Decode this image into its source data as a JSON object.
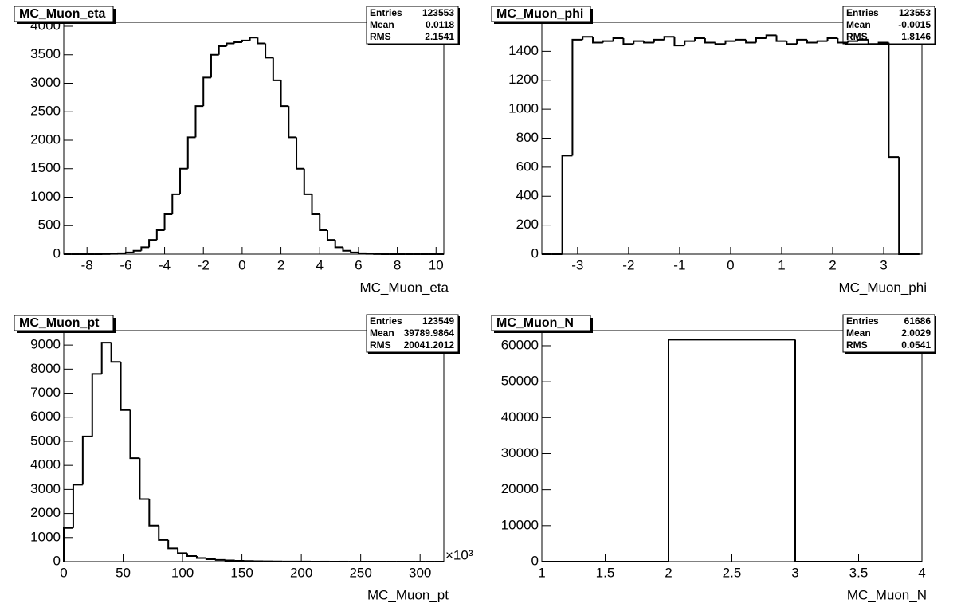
{
  "chart_data": [
    {
      "type": "histogram",
      "title": "MC_Muon_eta",
      "x_label": "MC_Muon_eta",
      "stats": [
        {
          "label": "Entries",
          "value": 123553
        },
        {
          "label": "Mean",
          "value": 0.0118
        },
        {
          "label": "RMS",
          "value": 2.1541
        }
      ],
      "bins": [
        -9.2,
        -8.8,
        -8.4,
        -8.0,
        -7.6,
        -7.2,
        -6.8,
        -6.4,
        -6.0,
        -5.6,
        -5.2,
        -4.8,
        -4.4,
        -4.0,
        -3.6,
        -3.2,
        -2.8,
        -2.4,
        -2.0,
        -1.6,
        -1.2,
        -0.8,
        -0.4,
        0.0,
        0.4,
        0.8,
        1.2,
        1.6,
        2.0,
        2.4,
        2.8,
        3.2,
        3.6,
        4.0,
        4.4,
        4.8,
        5.2,
        5.6,
        6.0,
        6.4,
        6.8,
        7.2,
        7.6,
        8.0,
        8.4,
        8.8,
        9.2,
        9.6,
        10.0,
        10.4
      ],
      "values": [
        0,
        0,
        0,
        0,
        0,
        2,
        5,
        15,
        30,
        60,
        120,
        250,
        420,
        700,
        1050,
        1500,
        2050,
        2600,
        3100,
        3500,
        3650,
        3700,
        3720,
        3750,
        3800,
        3700,
        3450,
        3050,
        2600,
        2050,
        1500,
        1050,
        700,
        420,
        250,
        120,
        60,
        30,
        15,
        5,
        2,
        0,
        0,
        0,
        0,
        0,
        0,
        0,
        0
      ],
      "color": "#000000",
      "xlim": [
        -9.2,
        10.4
      ],
      "xticks": [
        -8,
        -6,
        -4,
        -2,
        0,
        2,
        4,
        6,
        8,
        10
      ],
      "ylim": [
        0,
        4070
      ],
      "yticks": [
        0,
        500,
        1000,
        1500,
        2000,
        2500,
        3000,
        3500,
        4000
      ]
    },
    {
      "type": "histogram",
      "title": "MC_Muon_phi",
      "x_label": "MC_Muon_phi",
      "stats": [
        {
          "label": "Entries",
          "value": 123553
        },
        {
          "label": "Mean",
          "value": -0.0015
        },
        {
          "label": "RMS",
          "value": 1.8146
        }
      ],
      "bins": [
        -3.7,
        -3.5,
        -3.3,
        -3.1,
        -2.9,
        -2.7,
        -2.5,
        -2.3,
        -2.1,
        -1.9,
        -1.7,
        -1.5,
        -1.3,
        -1.1,
        -0.9,
        -0.7,
        -0.5,
        -0.3,
        -0.1,
        0.1,
        0.3,
        0.5,
        0.7,
        0.9,
        1.1,
        1.3,
        1.5,
        1.7,
        1.9,
        2.1,
        2.3,
        2.5,
        2.7,
        2.9,
        3.1,
        3.3,
        3.5,
        3.7
      ],
      "values": [
        0,
        0,
        680,
        1480,
        1500,
        1460,
        1470,
        1490,
        1450,
        1470,
        1460,
        1480,
        1500,
        1440,
        1470,
        1490,
        1460,
        1450,
        1470,
        1480,
        1460,
        1490,
        1510,
        1470,
        1450,
        1480,
        1460,
        1470,
        1490,
        1460,
        1470,
        1480,
        1450,
        1460,
        670,
        0,
        0
      ],
      "color": "#000000",
      "xlim": [
        -3.7,
        3.75
      ],
      "xticks": [
        -3,
        -2,
        -1,
        0,
        1,
        2,
        3
      ],
      "ylim": [
        0,
        1600
      ],
      "yticks": [
        0,
        200,
        400,
        600,
        800,
        1000,
        1200,
        1400
      ]
    },
    {
      "type": "histogram",
      "title": "MC_Muon_pt",
      "x_label": "MC_Muon_pt",
      "x_multiplier": "×10³",
      "stats": [
        {
          "label": "Entries",
          "value": 123549
        },
        {
          "label": "Mean",
          "value": 39789.9864
        },
        {
          "label": "RMS",
          "value": 20041.2012
        }
      ],
      "bins": [
        0,
        8,
        16,
        24,
        32,
        40,
        48,
        56,
        64,
        72,
        80,
        88,
        96,
        104,
        112,
        120,
        128,
        136,
        144,
        152,
        160,
        168,
        176,
        184,
        192,
        200,
        208,
        216,
        224,
        232,
        240,
        248,
        256,
        264,
        272,
        280,
        288,
        296,
        304,
        312,
        320
      ],
      "values": [
        1400,
        3200,
        5200,
        7800,
        9100,
        8300,
        6300,
        4300,
        2600,
        1500,
        900,
        550,
        350,
        230,
        150,
        100,
        70,
        50,
        35,
        25,
        18,
        12,
        8,
        6,
        4,
        3,
        2,
        2,
        1,
        1,
        0,
        0,
        0,
        0,
        0,
        0,
        0,
        0,
        0,
        0
      ],
      "color": "#000000",
      "xlim": [
        0,
        320
      ],
      "xticks": [
        0,
        50,
        100,
        150,
        200,
        250,
        300
      ],
      "ylim": [
        0,
        9600
      ],
      "yticks": [
        0,
        1000,
        2000,
        3000,
        4000,
        5000,
        6000,
        7000,
        8000,
        9000
      ]
    },
    {
      "type": "histogram",
      "title": "MC_Muon_N",
      "x_label": "MC_Muon_N",
      "stats": [
        {
          "label": "Entries",
          "value": 61686
        },
        {
          "label": "Mean",
          "value": 2.0029
        },
        {
          "label": "RMS",
          "value": 0.0541
        }
      ],
      "bins": [
        1,
        2,
        3,
        4
      ],
      "values": [
        0,
        61686,
        0
      ],
      "color": "#000000",
      "xlim": [
        1,
        4
      ],
      "xticks": [
        1,
        1.5,
        2,
        2.5,
        3,
        3.5,
        4
      ],
      "ylim": [
        0,
        64200
      ],
      "yticks": [
        0,
        10000,
        20000,
        30000,
        40000,
        50000,
        60000
      ]
    }
  ]
}
